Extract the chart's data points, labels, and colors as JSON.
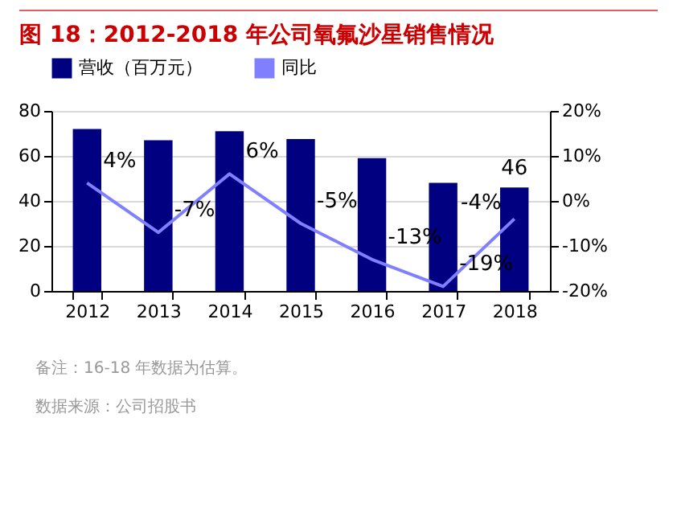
{
  "chart_data": {
    "type": "bar",
    "title": "图 18：2012-2018 年公司氧氟沙星销售情况",
    "categories": [
      "2012",
      "2013",
      "2014",
      "2015",
      "2016",
      "2017",
      "2018"
    ],
    "series": [
      {
        "name": "营收（百万元）",
        "color": "#000080",
        "values": [
          72,
          67,
          71,
          67.5,
          59,
          48,
          46
        ],
        "value_labels": [
          null,
          null,
          null,
          null,
          null,
          null,
          "46"
        ]
      },
      {
        "name": "同比",
        "type": "line",
        "axis": "y2",
        "color": "#8080ff",
        "values": [
          4,
          -7,
          6,
          -5,
          -13,
          -19,
          -4
        ],
        "value_labels": [
          "4%",
          "-7%",
          "6%",
          "-5%",
          "-13%",
          "-19%",
          "-4%"
        ]
      }
    ],
    "ylim": [
      0,
      80
    ],
    "yticks": [
      0,
      20,
      40,
      60,
      80
    ],
    "y2lim": [
      -20,
      20
    ],
    "y2ticks": [
      {
        "value": -20,
        "label": "-20%"
      },
      {
        "value": -10,
        "label": "-10%"
      },
      {
        "value": 0,
        "label": "0%"
      },
      {
        "value": 10,
        "label": "10%"
      },
      {
        "value": 20,
        "label": "20%"
      }
    ],
    "grid": "y",
    "legend": "top",
    "marker": "none",
    "annotations": [
      "备注：16-18 年数据为估算。",
      "数据来源：公司招股书"
    ]
  }
}
